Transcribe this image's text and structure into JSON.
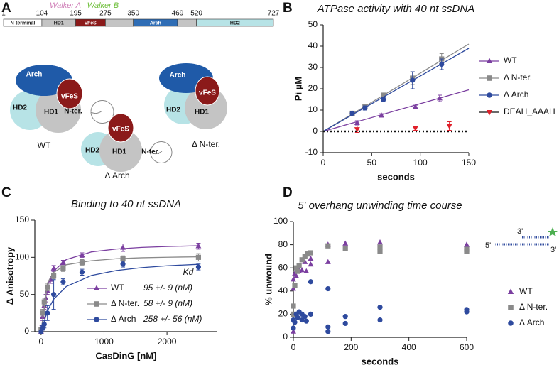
{
  "figure": {
    "panel_labels": [
      "A",
      "B",
      "C",
      "D"
    ]
  },
  "diagram": {
    "walker_a": "Walker A",
    "walker_b": "Walker B",
    "positions": [
      1,
      104,
      195,
      275,
      350,
      469,
      520,
      727
    ],
    "segments": [
      {
        "label": "N-terminal",
        "color": "#ffffff"
      },
      {
        "label": "HD1",
        "color": "#c4c4c4"
      },
      {
        "label": "vFeS",
        "color": "#8b1a1a"
      },
      {
        "color": "#c4c4c4"
      },
      {
        "label": "Arch",
        "color": "#2f6db5"
      },
      {
        "color": "#c4c4c4"
      },
      {
        "label": "HD2",
        "color": "#b7e3e6"
      }
    ],
    "cartoons": [
      {
        "name": "WT",
        "labels": [
          "Arch",
          "vFeS",
          "HD2",
          "HD1",
          "N-ter."
        ]
      },
      {
        "name": "Δ N-ter.",
        "labels": [
          "Arch",
          "vFeS",
          "HD2",
          "HD1"
        ]
      },
      {
        "name": "Δ Arch",
        "labels": [
          "vFeS",
          "HD2",
          "HD1",
          "N-ter."
        ]
      }
    ]
  },
  "chart_data": [
    {
      "type": "scatter",
      "title": "ATPase activity with 40 nt ssDNA",
      "x_label": "seconds",
      "y_label": "Pi µM",
      "xlim": [
        0,
        150
      ],
      "ylim": [
        -10,
        50
      ],
      "xticks": [
        0,
        50,
        100,
        150
      ],
      "yticks": [
        -10,
        0,
        10,
        20,
        30,
        40,
        50
      ],
      "fit_x": [
        0,
        150
      ],
      "series": [
        {
          "name": "WT",
          "color": "#7b3fa0",
          "marker": "triangle",
          "x": [
            35,
            60,
            95,
            120
          ],
          "values": [
            4,
            7.5,
            11.5,
            15.5
          ],
          "errors": [
            1,
            0.8,
            0.8,
            1.5
          ],
          "fit": [
            0,
            19.5
          ]
        },
        {
          "name": "Δ N-ter.",
          "color": "#8a8a8a",
          "marker": "square",
          "x": [
            30,
            43,
            62,
            92,
            122
          ],
          "values": [
            8.5,
            11.5,
            17,
            25,
            34
          ],
          "errors": [
            0.8,
            1,
            1,
            3,
            2.5
          ],
          "fit": [
            0,
            41
          ]
        },
        {
          "name": "Δ Arch",
          "color": "#2e4a9e",
          "marker": "circle",
          "x": [
            30,
            43,
            62,
            92,
            122
          ],
          "values": [
            8.5,
            11,
            15,
            24,
            31.5
          ],
          "errors": [
            0.8,
            1,
            1,
            4,
            2.5
          ],
          "fit": [
            0,
            39
          ]
        },
        {
          "name": "DEAH_AAAH",
          "color": "#e0202a",
          "marker": "triangle-down",
          "x": [
            35,
            95,
            130
          ],
          "values": [
            1,
            1.5,
            2.5
          ],
          "errors": [
            1.5,
            1,
            2
          ],
          "fit": [
            0,
            0
          ],
          "fit_dotted": true
        }
      ]
    },
    {
      "type": "scatter",
      "title": "Binding to 40 nt ssDNA",
      "x_label": "CasDinG [nM]",
      "y_label": "Δ Anisotropy",
      "xlim": [
        -100,
        2800
      ],
      "ylim": [
        0,
        150
      ],
      "xticks": [
        0,
        1000,
        2000
      ],
      "yticks": [
        0,
        50,
        100,
        150
      ],
      "legend_title": "Kd",
      "fit_x": [
        0,
        100,
        200,
        400,
        800,
        1200,
        1600,
        2000,
        2500
      ],
      "series": [
        {
          "name": "WT",
          "kd": "95 +/- 9 (nM)",
          "color": "#7b3fa0",
          "marker": "triangle",
          "x": [
            0,
            10,
            25,
            50,
            75,
            100,
            150,
            200,
            350,
            650,
            1300,
            2500
          ],
          "values": [
            0,
            5,
            20,
            35,
            45,
            55,
            70,
            85,
            93,
            103,
            113,
            115
          ],
          "errors": [
            2,
            3,
            5,
            5,
            5,
            5,
            5,
            4,
            3,
            3,
            5,
            4
          ],
          "fit": [
            0,
            61.5,
            81.4,
            97,
            107.3,
            111.2,
            113.3,
            114.5,
            115.6
          ]
        },
        {
          "name": "Δ N-ter.",
          "kd": "58 +/- 9 (nM)",
          "color": "#8a8a8a",
          "marker": "square",
          "x": [
            0,
            25,
            50,
            100,
            200,
            350,
            650,
            1300,
            2500
          ],
          "values": [
            3,
            25,
            40,
            60,
            75,
            85,
            93,
            98,
            100
          ],
          "errors": [
            3,
            5,
            5,
            5,
            4,
            4,
            4,
            4,
            5
          ],
          "fit": [
            0,
            65.2,
            79.8,
            90,
            95.4,
            98.2,
            99.4,
            100.1,
            100.7
          ]
        },
        {
          "name": "Δ Arch",
          "kd": "258 +/- 56 (nM)",
          "color": "#2e4a9e",
          "marker": "circle",
          "x": [
            0,
            25,
            50,
            100,
            200,
            350,
            650,
            1300,
            2500
          ],
          "values": [
            0,
            5,
            10,
            25,
            50,
            67,
            80,
            91,
            87
          ],
          "errors": [
            2,
            3,
            5,
            10,
            20,
            4,
            4,
            4,
            4
          ],
          "fit": [
            0,
            27.9,
            43.7,
            60.8,
            75.6,
            82.3,
            86.1,
            88.6,
            90.6
          ]
        }
      ]
    },
    {
      "type": "scatter",
      "title": "5′ overhang unwinding time course",
      "x_label": "seconds",
      "y_label": "% unwound",
      "xlim": [
        0,
        600
      ],
      "ylim": [
        0,
        100
      ],
      "xticks": [
        0,
        200,
        400,
        600
      ],
      "yticks": [
        0,
        20,
        40,
        60,
        80,
        100
      ],
      "substrate_labels": [
        "3'",
        "5'",
        "3'"
      ],
      "series": [
        {
          "name": "WT",
          "color": "#7b3fa0",
          "marker": "triangle",
          "x": [
            0,
            0,
            0,
            5,
            10,
            15,
            20,
            30,
            40,
            45,
            60,
            60,
            120,
            120,
            180,
            300,
            600
          ],
          "values": [
            5,
            42,
            50,
            55,
            53,
            60,
            57,
            58,
            65,
            57,
            68,
            63,
            80,
            65,
            81,
            82,
            80
          ]
        },
        {
          "name": "Δ N-ter.",
          "color": "#8a8a8a",
          "marker": "square",
          "x": [
            0,
            0,
            5,
            10,
            15,
            20,
            30,
            40,
            50,
            60,
            120,
            180,
            300,
            300,
            600,
            600
          ],
          "values": [
            27,
            20,
            45,
            60,
            57,
            62,
            67,
            70,
            72,
            73,
            79,
            77,
            74,
            78,
            74,
            76
          ]
        },
        {
          "name": "Δ Arch",
          "color": "#2e4a9e",
          "marker": "circle",
          "x": [
            0,
            0,
            5,
            10,
            15,
            20,
            30,
            30,
            40,
            45,
            60,
            60,
            120,
            120,
            120,
            180,
            180,
            300,
            300,
            600,
            600
          ],
          "values": [
            8,
            15,
            13,
            20,
            17,
            22,
            15,
            20,
            18,
            14,
            20,
            48,
            42,
            9,
            5,
            12,
            18,
            26,
            15,
            22,
            24
          ]
        }
      ]
    }
  ]
}
